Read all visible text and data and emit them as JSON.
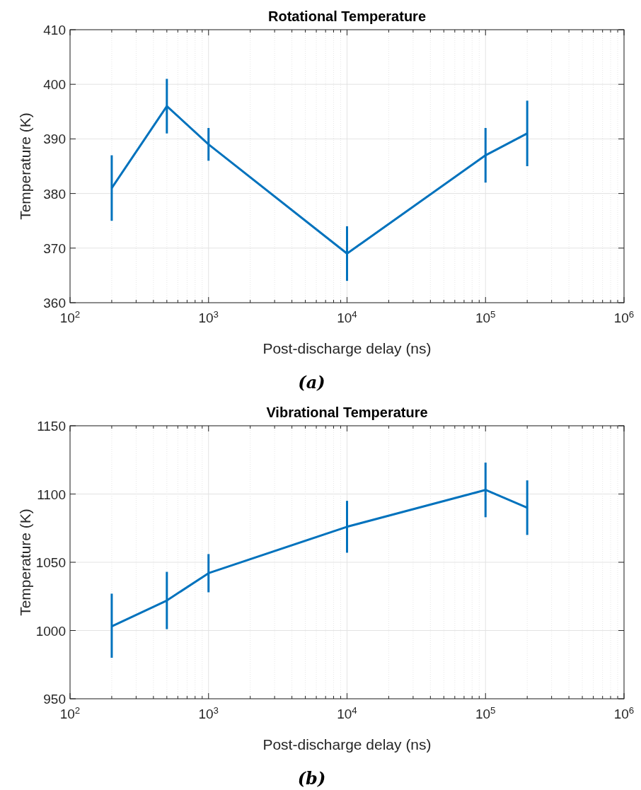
{
  "chart_data": [
    {
      "type": "line",
      "title": "Rotational Temperature",
      "xlabel": "Post-discharge delay (ns)",
      "ylabel": "Temperature (K)",
      "annotations": [
        "(a)"
      ],
      "log": "x",
      "grid": true,
      "marker": "none",
      "line_style": "solid",
      "x": [
        200,
        500,
        1000,
        10000,
        100000,
        200000
      ],
      "series": [
        {
          "color": "#0072bd",
          "values": [
            381,
            396,
            389,
            369,
            387,
            391
          ],
          "errors": [
            [
              375,
              387
            ],
            [
              391,
              401
            ],
            [
              386,
              392
            ],
            [
              364,
              374
            ],
            [
              382,
              392
            ],
            [
              385,
              397
            ]
          ]
        }
      ],
      "xlim": [
        100,
        1000000
      ],
      "xticks": [
        {
          "value": 100,
          "label": "10$^{2}$"
        },
        {
          "value": 1000,
          "label": "10$^{3}$"
        },
        {
          "value": 10000,
          "label": "10$^{4}$"
        },
        {
          "value": 100000,
          "label": "10$^{5}$"
        },
        {
          "value": 1000000,
          "label": "10$^{6}$"
        }
      ],
      "ylim": [
        360,
        410
      ],
      "yticks": [
        360,
        370,
        380,
        390,
        400,
        410
      ]
    },
    {
      "type": "line",
      "title": "Vibrational Temperature",
      "xlabel": "Post-discharge delay (ns)",
      "ylabel": "Temperature (K)",
      "annotations": [
        "(b)"
      ],
      "log": "x",
      "grid": true,
      "marker": "none",
      "line_style": "solid",
      "x": [
        200,
        500,
        1000,
        10000,
        100000,
        200000
      ],
      "series": [
        {
          "color": "#0072bd",
          "values": [
            1003,
            1022,
            1042,
            1076,
            1103,
            1090
          ],
          "errors": [
            [
              980,
              1027
            ],
            [
              1001,
              1043
            ],
            [
              1028,
              1056
            ],
            [
              1057,
              1095
            ],
            [
              1083,
              1123
            ],
            [
              1070,
              1110
            ]
          ]
        }
      ],
      "xlim": [
        100,
        1000000
      ],
      "xticks": [
        {
          "value": 100,
          "label": "10$^{2}$"
        },
        {
          "value": 1000,
          "label": "10$^{3}$"
        },
        {
          "value": 10000,
          "label": "10$^{4}$"
        },
        {
          "value": 100000,
          "label": "10$^{5}$"
        },
        {
          "value": 1000000,
          "label": "10$^{6}$"
        }
      ],
      "ylim": [
        950,
        1150
      ],
      "yticks": [
        950,
        1000,
        1050,
        1100,
        1150
      ]
    }
  ]
}
